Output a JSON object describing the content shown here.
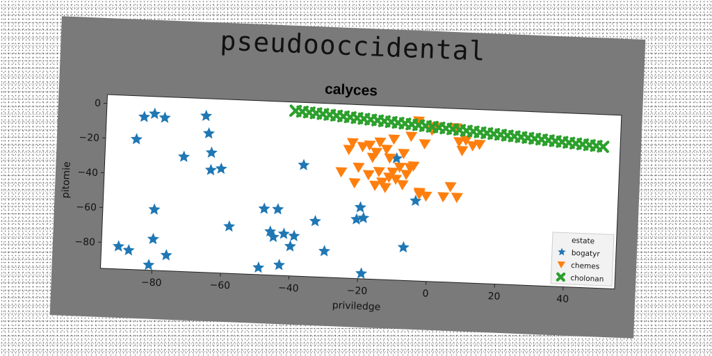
{
  "figure": {
    "suptitle": "pseudooccidental"
  },
  "chart_data": {
    "type": "scatter",
    "title": "calyces",
    "xlabel": "priviledge",
    "ylabel": "pitomie",
    "xlim": [
      -95,
      55
    ],
    "ylim": [
      -95,
      5
    ],
    "xticks": [
      -80,
      -60,
      -40,
      -20,
      0,
      20,
      40
    ],
    "yticks": [
      0,
      -20,
      -40,
      -60,
      -80
    ],
    "grid": false,
    "legend": {
      "title": "estate",
      "position": "bottom-right"
    },
    "series": [
      {
        "name": "bogatyr",
        "marker": "star",
        "color": "#1f77b4",
        "points": [
          [
            -84,
            -7
          ],
          [
            -81,
            -5
          ],
          [
            -78,
            -7
          ],
          [
            -86,
            -20
          ],
          [
            -66,
            -5
          ],
          [
            -65,
            -15
          ],
          [
            -64,
            -26
          ],
          [
            -72,
            -29
          ],
          [
            -64,
            -36
          ],
          [
            -61,
            -35
          ],
          [
            -80,
            -60
          ],
          [
            -58,
            -68
          ],
          [
            -80,
            -77
          ],
          [
            -90,
            -82
          ],
          [
            -87,
            -84
          ],
          [
            -76,
            -86
          ],
          [
            -81,
            -92
          ],
          [
            -48,
            -57
          ],
          [
            -44,
            -57
          ],
          [
            -46,
            -70
          ],
          [
            -42,
            -71
          ],
          [
            -39,
            -72
          ],
          [
            -40,
            -78
          ],
          [
            -45,
            -73
          ],
          [
            -33,
            -63
          ],
          [
            -30,
            -80
          ],
          [
            -49,
            -91
          ],
          [
            -43,
            -89
          ],
          [
            -19,
            -60
          ],
          [
            -21,
            -61
          ],
          [
            -20,
            -54
          ],
          [
            -19,
            -92
          ],
          [
            -7,
            -76
          ],
          [
            -4,
            -49
          ],
          [
            -10,
            -25
          ],
          [
            -37,
            -31
          ]
        ]
      },
      {
        "name": "chemes",
        "marker": "triangle_down",
        "color": "#ff7f0e",
        "points": [
          [
            -18,
            -18
          ],
          [
            -15,
            -16
          ],
          [
            -16,
            -22
          ],
          [
            -13,
            -20
          ],
          [
            -11,
            -14
          ],
          [
            -12,
            -25
          ],
          [
            -9,
            -30
          ],
          [
            -8,
            -22
          ],
          [
            -6,
            -12
          ],
          [
            -4,
            -3
          ],
          [
            -2,
            -16
          ],
          [
            0,
            -8
          ],
          [
            1,
            -6
          ],
          [
            -21,
            -31
          ],
          [
            -18,
            -35
          ],
          [
            -15,
            -33
          ],
          [
            -14,
            -39
          ],
          [
            -12,
            -36
          ],
          [
            -10,
            -37
          ],
          [
            -7,
            -34
          ],
          [
            -6,
            -30
          ],
          [
            -22,
            -40
          ],
          [
            -16,
            -41
          ],
          [
            -13,
            -42
          ],
          [
            -5,
            -29
          ],
          [
            -3,
            -44
          ],
          [
            -1,
            -46
          ],
          [
            4,
            -46
          ],
          [
            6,
            -40
          ],
          [
            8,
            -46
          ],
          [
            7,
            -6
          ],
          [
            8,
            -14
          ],
          [
            10,
            -13
          ],
          [
            12,
            -16
          ],
          [
            9,
            -19
          ],
          [
            14,
            -15
          ],
          [
            -26,
            -34
          ],
          [
            -24,
            -21
          ],
          [
            -20,
            -19
          ],
          [
            -23,
            -17
          ],
          [
            -3,
            -45
          ],
          [
            -8,
            -40
          ],
          [
            -11,
            -33
          ],
          [
            -17,
            -25
          ]
        ]
      },
      {
        "name": "cholonan",
        "marker": "x",
        "color": "#2ca02c",
        "points": [
          [
            -40,
            0
          ],
          [
            -38,
            -0.3
          ],
          [
            -36,
            -0.6
          ],
          [
            -34,
            -0.9
          ],
          [
            -32,
            -1.2
          ],
          [
            -30,
            -1.5
          ],
          [
            -28,
            -1.8
          ],
          [
            -26,
            -2.1
          ],
          [
            -24,
            -2.4
          ],
          [
            -22,
            -2.7
          ],
          [
            -20,
            -3
          ],
          [
            -18,
            -3.3
          ],
          [
            -16,
            -3.6
          ],
          [
            -14,
            -3.9
          ],
          [
            -12,
            -4.2
          ],
          [
            -10,
            -4.5
          ],
          [
            -8,
            -4.8
          ],
          [
            -6,
            -5.1
          ],
          [
            -4,
            -5.4
          ],
          [
            -2,
            -5.7
          ],
          [
            0,
            -6
          ],
          [
            2,
            -6.3
          ],
          [
            4,
            -6.6
          ],
          [
            6,
            -6.9
          ],
          [
            8,
            -7.2
          ],
          [
            10,
            -7.5
          ],
          [
            12,
            -7.8
          ],
          [
            14,
            -8.1
          ],
          [
            16,
            -8.4
          ],
          [
            18,
            -8.7
          ],
          [
            20,
            -9
          ],
          [
            22,
            -9.3
          ],
          [
            24,
            -9.6
          ],
          [
            26,
            -9.9
          ],
          [
            28,
            -10.2
          ],
          [
            30,
            -10.5
          ],
          [
            32,
            -10.8
          ],
          [
            34,
            -11.1
          ],
          [
            36,
            -11.4
          ],
          [
            38,
            -11.7
          ],
          [
            40,
            -12
          ],
          [
            42,
            -12.3
          ],
          [
            44,
            -12.6
          ],
          [
            46,
            -12.9
          ],
          [
            48,
            -13.2
          ],
          [
            50,
            -13.5
          ]
        ]
      }
    ]
  }
}
